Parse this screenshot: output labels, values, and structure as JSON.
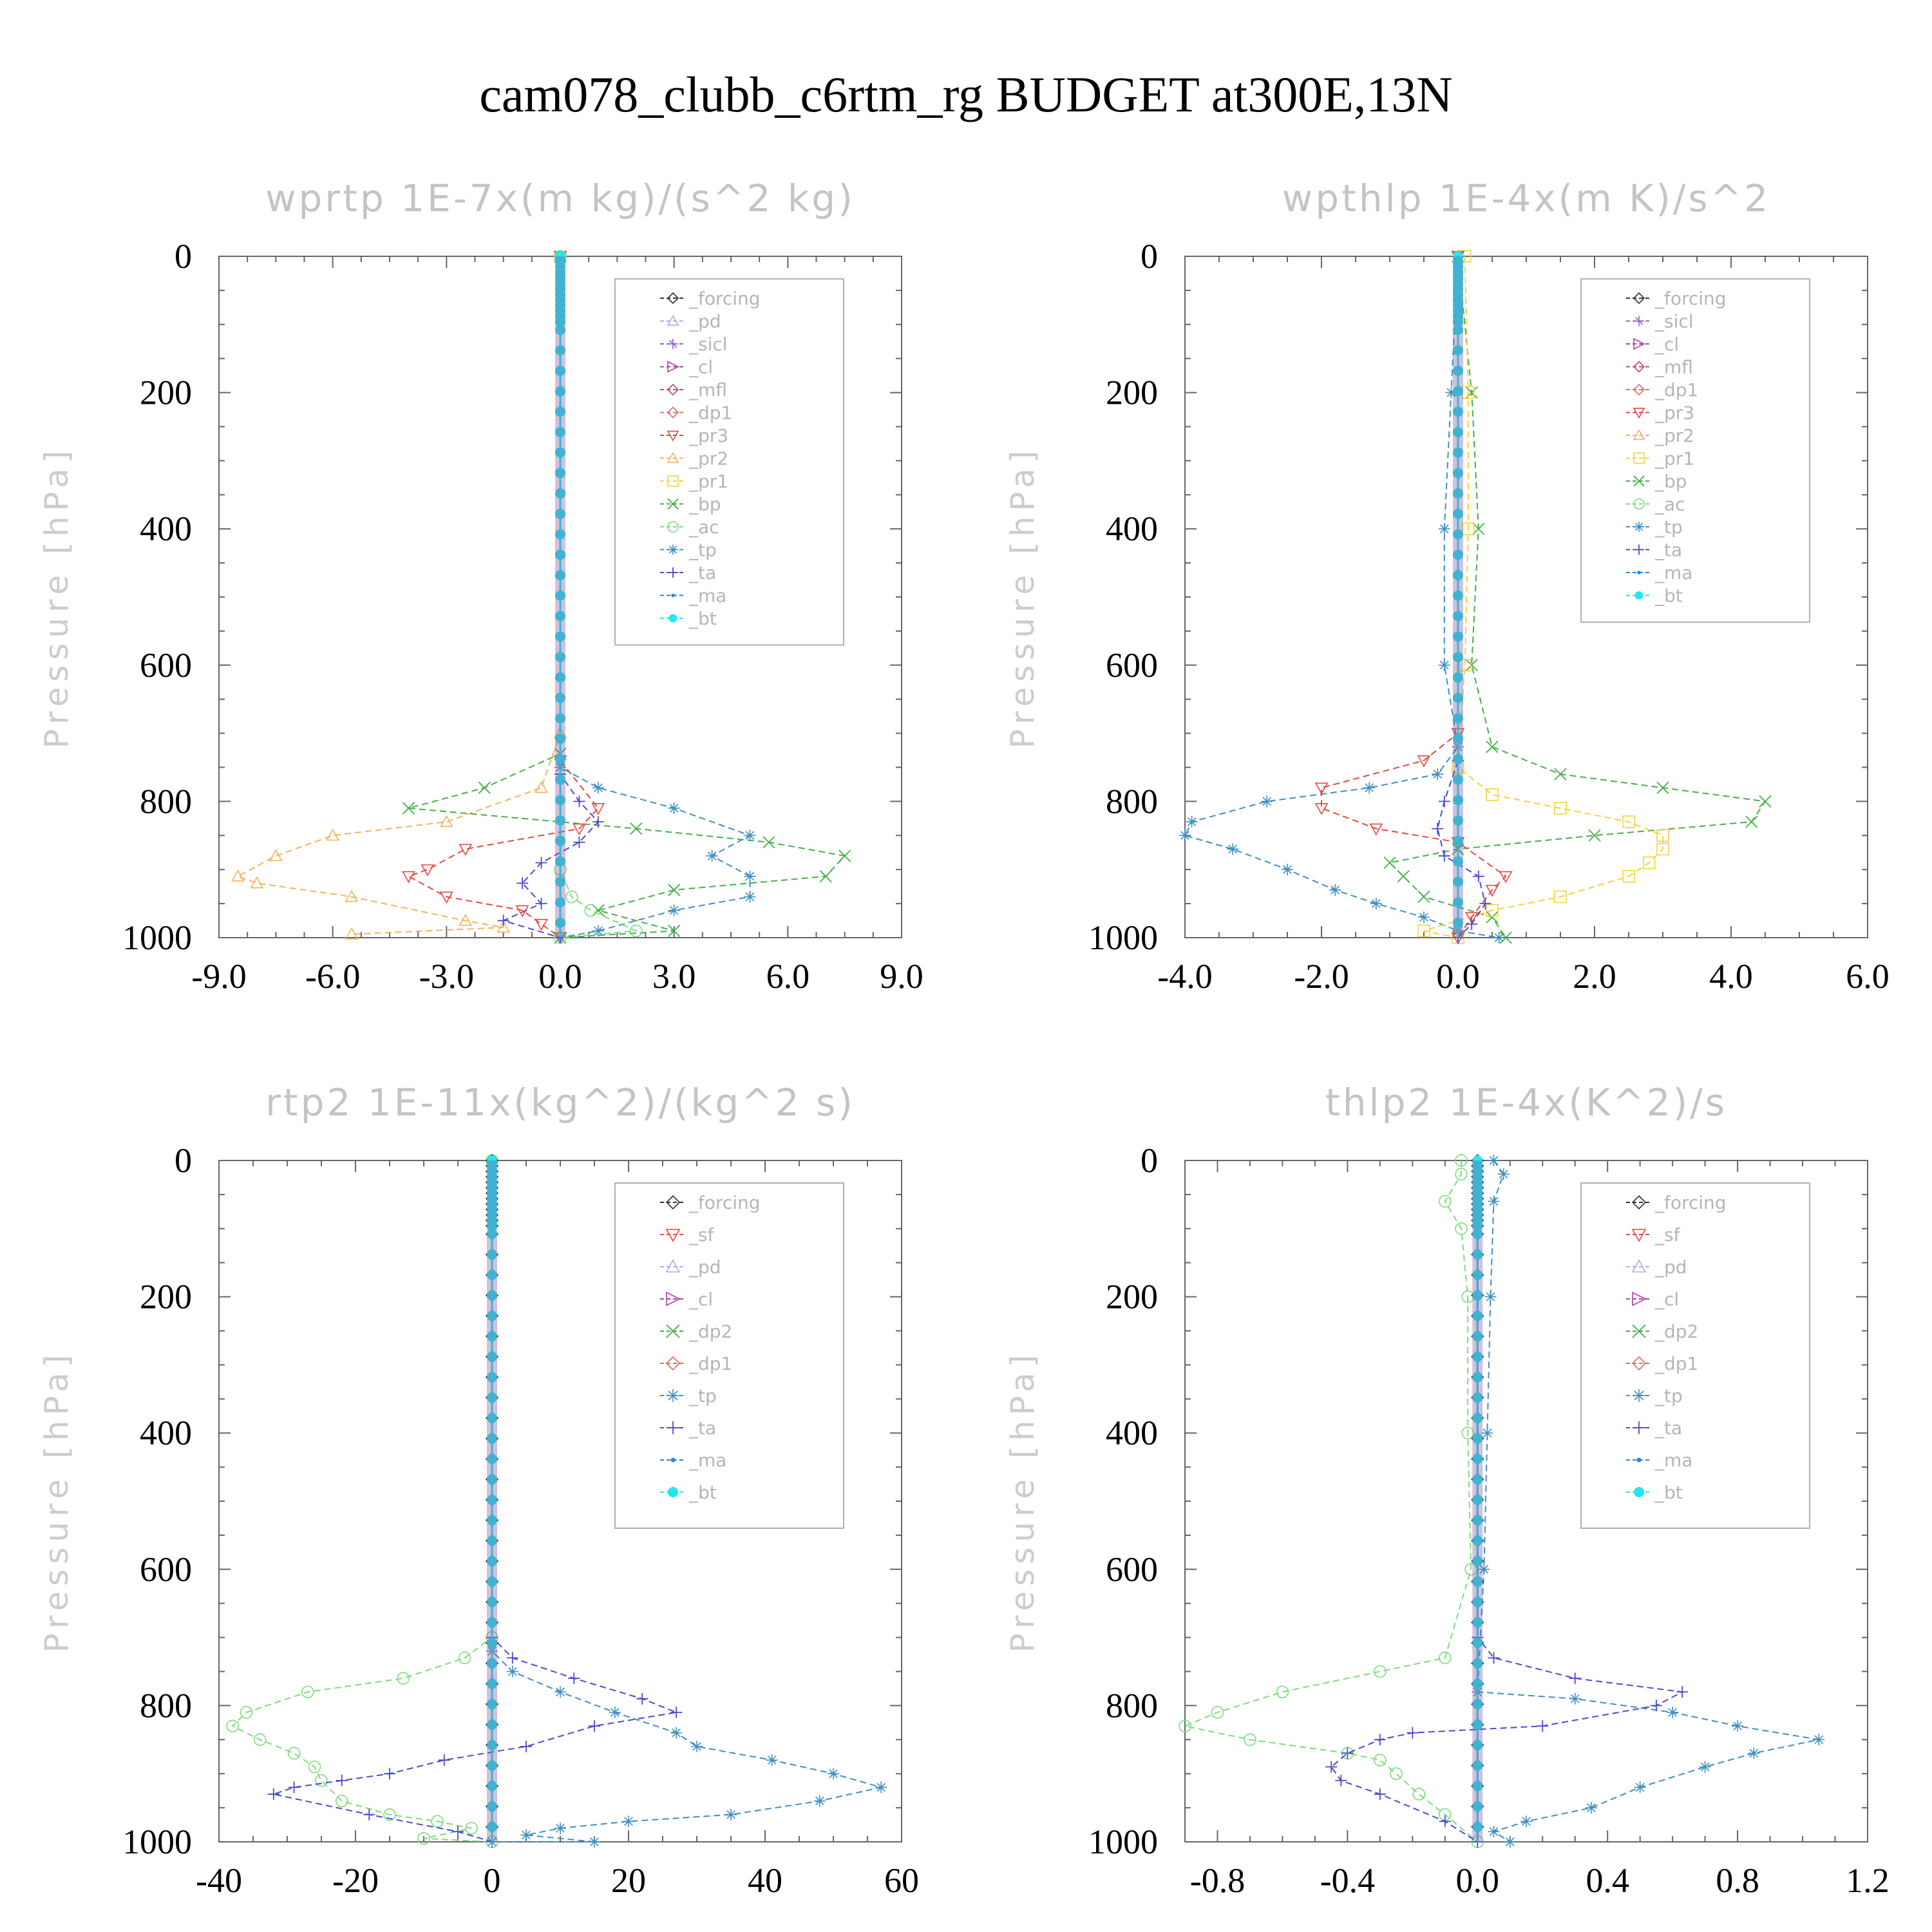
{
  "figure": {
    "title": "cam078_clubb_c6rtm_rg  BUDGET at300E,13N"
  },
  "colors": {
    "_forcing": "#333333",
    "_pd": "#b9a6e6",
    "_sicl": "#8f5fc7",
    "_cl": "#b13fa8",
    "_mfl": "#c44a6a",
    "_dp1": "#e06a6a",
    "_pr3": "#e5483f",
    "_pr2": "#f2b35a",
    "_pr1": "#f5d23d",
    "_bp": "#44b048",
    "_ac": "#7ddc7d",
    "_tp": "#3f8fc2",
    "_ta": "#4a4ad0",
    "_ma": "#2a86d6",
    "_bt": "#22e8ee",
    "_sf": "#e5483f",
    "_dp2": "#44b048"
  },
  "chart_data": [
    {
      "type": "line",
      "title": "wprtp   1E-7x(m kg)/(s^2 kg)",
      "ylabel": "Pressure [hPa]",
      "xlim": [
        -9,
        9
      ],
      "ylim": [
        0,
        1000
      ],
      "y_inverted": true,
      "xticks": [
        -9,
        -6,
        -3,
        0,
        3,
        6,
        9
      ],
      "xtick_labels": [
        "-9.0",
        "-6.0",
        "-3.0",
        "0.0",
        "3.0",
        "6.0",
        "9.0"
      ],
      "yticks": [
        0,
        200,
        400,
        600,
        800,
        1000
      ],
      "ytick_labels": [
        "0",
        "200",
        "400",
        "600",
        "800",
        "1000"
      ],
      "legend_position": "top-right",
      "legend": [
        "_forcing",
        "_pd",
        "_sicl",
        "_cl",
        "_mfl",
        "_dp1",
        "_pr3",
        "_pr2",
        "_pr1",
        "_bp",
        "_ac",
        "_tp",
        "_ta",
        "_ma",
        "_bt"
      ],
      "series": [
        {
          "name": "_pr2",
          "x": [
            0,
            0,
            -0.5,
            -3,
            -6,
            -7.5,
            -8.5,
            -8,
            -5.5,
            -2.5,
            -1.5,
            -5.5
          ],
          "y": [
            0,
            700,
            780,
            830,
            850,
            880,
            910,
            920,
            940,
            975,
            985,
            995
          ]
        },
        {
          "name": "_pr3",
          "x": [
            0,
            0,
            1,
            0.5,
            -2.5,
            -3.5,
            -4,
            -3,
            -1,
            -0.5,
            0
          ],
          "y": [
            0,
            740,
            810,
            840,
            870,
            900,
            910,
            940,
            960,
            980,
            1000
          ]
        },
        {
          "name": "_bp",
          "x": [
            0,
            0,
            -2,
            -4,
            2,
            5.5,
            7.5,
            7,
            3,
            1,
            3,
            0
          ],
          "y": [
            0,
            730,
            780,
            810,
            840,
            860,
            880,
            910,
            930,
            960,
            990,
            1000
          ]
        },
        {
          "name": "_tp",
          "x": [
            0,
            0,
            1,
            3,
            5,
            4,
            5,
            5,
            3,
            1,
            0
          ],
          "y": [
            0,
            750,
            780,
            810,
            850,
            880,
            910,
            940,
            960,
            990,
            1000
          ]
        },
        {
          "name": "_ta",
          "x": [
            0,
            0,
            0.5,
            1,
            0.5,
            -0.5,
            -1,
            -0.5,
            -1.5,
            0
          ],
          "y": [
            0,
            760,
            800,
            830,
            860,
            890,
            920,
            950,
            975,
            1000
          ]
        },
        {
          "name": "_ac",
          "x": [
            0,
            0,
            0.3,
            0.8,
            2,
            0
          ],
          "y": [
            0,
            900,
            940,
            960,
            990,
            1000
          ]
        },
        {
          "name": "_bt",
          "x": [
            0,
            0
          ],
          "y": [
            0,
            1000
          ]
        }
      ]
    },
    {
      "type": "line",
      "title": "wpthlp   1E-4x(m K)/s^2",
      "ylabel": "Pressure [hPa]",
      "xlim": [
        -4,
        6
      ],
      "ylim": [
        0,
        1000
      ],
      "y_inverted": true,
      "xticks": [
        -4,
        -2,
        0,
        2,
        4,
        6
      ],
      "xtick_labels": [
        "-4.0",
        "-2.0",
        "0.0",
        "2.0",
        "4.0",
        "6.0"
      ],
      "yticks": [
        0,
        200,
        400,
        600,
        800,
        1000
      ],
      "ytick_labels": [
        "0",
        "200",
        "400",
        "600",
        "800",
        "1000"
      ],
      "legend_position": "top-right",
      "legend": [
        "_forcing",
        "_sicl",
        "_cl",
        "_mfl",
        "_dp1",
        "_pr3",
        "_pr2",
        "_pr1",
        "_bp",
        "_ac",
        "_tp",
        "_ta",
        "_ma",
        "_bt"
      ],
      "series": [
        {
          "name": "_tp",
          "x": [
            0,
            -0.1,
            -0.2,
            -0.2,
            0,
            -0.3,
            -1.3,
            -2.8,
            -3.9,
            -4,
            -3.3,
            -2.5,
            -1.8,
            -1.2,
            -0.5,
            0,
            0.6
          ],
          "y": [
            0,
            200,
            400,
            600,
            720,
            760,
            780,
            800,
            830,
            850,
            870,
            900,
            930,
            950,
            970,
            990,
            1000
          ]
        },
        {
          "name": "_bp",
          "x": [
            0,
            0.2,
            0.3,
            0.2,
            0.5,
            1.5,
            3,
            4.5,
            4.3,
            2,
            0,
            -1,
            -0.8,
            -0.5,
            0.5,
            0.7
          ],
          "y": [
            0,
            200,
            400,
            600,
            720,
            760,
            780,
            800,
            830,
            850,
            870,
            890,
            910,
            940,
            970,
            1000
          ]
        },
        {
          "name": "_pr1",
          "x": [
            0.1,
            0.15,
            0.15,
            0.1,
            0,
            0.5,
            1.5,
            2.5,
            3,
            3,
            2.8,
            2.5,
            1.5,
            0.5,
            -0.5,
            0
          ],
          "y": [
            0,
            200,
            400,
            600,
            750,
            790,
            810,
            830,
            850,
            870,
            890,
            910,
            940,
            960,
            990,
            1000
          ]
        },
        {
          "name": "_pr3",
          "x": [
            0,
            0,
            -0.5,
            -2,
            -2,
            -1.2,
            0,
            0.7,
            0.5,
            0.2,
            0
          ],
          "y": [
            0,
            700,
            740,
            780,
            810,
            840,
            860,
            910,
            930,
            970,
            1000
          ]
        },
        {
          "name": "_ta",
          "x": [
            0,
            0,
            -0.2,
            -0.3,
            -0.2,
            0.3,
            0.4,
            0.2,
            0
          ],
          "y": [
            0,
            740,
            800,
            840,
            880,
            910,
            950,
            980,
            1000
          ]
        },
        {
          "name": "_bt",
          "x": [
            0,
            0
          ],
          "y": [
            0,
            1000
          ]
        }
      ]
    },
    {
      "type": "line",
      "title": "rtp2   1E-11x(kg^2)/(kg^2 s)",
      "ylabel": "Pressure [hPa]",
      "xlim": [
        -40,
        60
      ],
      "ylim": [
        0,
        1000
      ],
      "y_inverted": true,
      "xticks": [
        -40,
        -20,
        0,
        20,
        40,
        60
      ],
      "xtick_labels": [
        "-40",
        "-20",
        "0",
        "20",
        "40",
        "60"
      ],
      "yticks": [
        0,
        200,
        400,
        600,
        800,
        1000
      ],
      "ytick_labels": [
        "0",
        "200",
        "400",
        "600",
        "800",
        "1000"
      ],
      "legend_position": "top-right",
      "legend": [
        "_forcing",
        "_sf",
        "_pd",
        "_cl",
        "_dp2",
        "_dp1",
        "_tp",
        "_ta",
        "_ma",
        "_bt"
      ],
      "series": [
        {
          "name": "_ac",
          "x": [
            0,
            0,
            -4,
            -13,
            -27,
            -36,
            -38,
            -34,
            -29,
            -26,
            -25,
            -22,
            -15,
            -8,
            -3,
            -10,
            0
          ],
          "y": [
            0,
            700,
            730,
            760,
            780,
            810,
            830,
            850,
            870,
            890,
            910,
            940,
            960,
            970,
            980,
            995,
            1000
          ]
        },
        {
          "name": "_ta",
          "x": [
            0,
            0,
            3,
            12,
            22,
            27,
            15,
            5,
            -7,
            -15,
            -22,
            -29,
            -32,
            -18,
            -5,
            0
          ],
          "y": [
            0,
            700,
            730,
            760,
            790,
            810,
            830,
            860,
            880,
            900,
            910,
            920,
            930,
            960,
            985,
            1000
          ]
        },
        {
          "name": "_tp",
          "x": [
            0,
            0,
            3,
            10,
            18,
            27,
            30,
            41,
            50,
            57,
            48,
            35,
            20,
            10,
            5,
            15,
            0
          ],
          "y": [
            0,
            720,
            750,
            780,
            810,
            840,
            860,
            880,
            900,
            920,
            940,
            960,
            970,
            980,
            990,
            1000,
            1000
          ]
        },
        {
          "name": "_forcing",
          "x": [
            0,
            0
          ],
          "y": [
            0,
            1000
          ]
        },
        {
          "name": "_bt",
          "x": [
            0,
            0
          ],
          "y": [
            0,
            1000
          ]
        }
      ]
    },
    {
      "type": "line",
      "title": "thlp2   1E-4x(K^2)/s",
      "ylabel": "Pressure [hPa]",
      "xlim": [
        -0.9,
        1.2
      ],
      "ylim": [
        0,
        1000
      ],
      "y_inverted": true,
      "xticks": [
        -0.8,
        -0.4,
        0.0,
        0.4,
        0.8,
        1.2
      ],
      "xtick_labels": [
        "-0.8",
        "-0.4",
        "0.0",
        "0.4",
        "0.8",
        "1.2"
      ],
      "yticks": [
        0,
        200,
        400,
        600,
        800,
        1000
      ],
      "ytick_labels": [
        "0",
        "200",
        "400",
        "600",
        "800",
        "1000"
      ],
      "legend_position": "top-right",
      "legend": [
        "_forcing",
        "_sf",
        "_pd",
        "_cl",
        "_dp2",
        "_dp1",
        "_tp",
        "_ta",
        "_ma",
        "_bt"
      ],
      "series": [
        {
          "name": "_ac",
          "x": [
            -0.05,
            -0.05,
            -0.1,
            -0.05,
            -0.03,
            -0.03,
            -0.02,
            -0.1,
            -0.3,
            -0.6,
            -0.8,
            -0.9,
            -0.7,
            -0.4,
            -0.3,
            -0.25,
            -0.18,
            -0.1,
            0
          ],
          "y": [
            0,
            20,
            60,
            100,
            200,
            400,
            600,
            730,
            750,
            780,
            810,
            830,
            850,
            870,
            880,
            900,
            930,
            960,
            1000
          ]
        },
        {
          "name": "_tp",
          "x": [
            0.05,
            0.08,
            0.05,
            0.04,
            0.03,
            0.02,
            0,
            0.3,
            0.6,
            0.8,
            1.05,
            0.85,
            0.7,
            0.5,
            0.35,
            0.15,
            0.05,
            0.1
          ],
          "y": [
            0,
            20,
            60,
            200,
            400,
            600,
            780,
            790,
            810,
            830,
            850,
            870,
            890,
            920,
            950,
            970,
            985,
            1000
          ]
        },
        {
          "name": "_ta",
          "x": [
            0,
            0,
            0.05,
            0.3,
            0.63,
            0.55,
            0.2,
            -0.2,
            -0.3,
            -0.4,
            -0.45,
            -0.42,
            -0.3,
            -0.1,
            0
          ],
          "y": [
            0,
            700,
            730,
            760,
            780,
            800,
            830,
            840,
            850,
            870,
            890,
            910,
            930,
            970,
            1000
          ]
        },
        {
          "name": "_forcing",
          "x": [
            0,
            0
          ],
          "y": [
            0,
            1000
          ]
        },
        {
          "name": "_bt",
          "x": [
            0,
            0
          ],
          "y": [
            0,
            1000
          ]
        }
      ]
    }
  ]
}
